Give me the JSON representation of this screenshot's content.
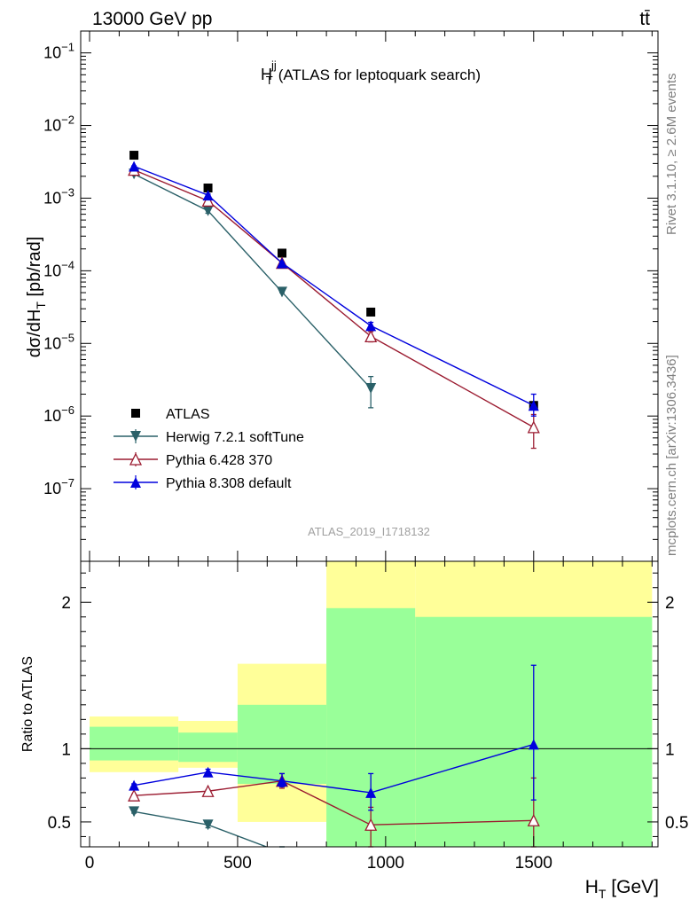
{
  "header": {
    "process": "13000 GeV pp",
    "final_state": "tt̄",
    "side_version": "Rivet 3.1.10, ≥ 2.6M events",
    "side_site": "mcplots.cern.ch [arXiv:1306.3436]"
  },
  "chart_data": [
    {
      "type": "line",
      "panel": "main",
      "title_main": "H",
      "title_sup": "jj",
      "title_sub": "T",
      "title_rest": "(ATLAS for leptoquark search)",
      "ylabel": "dσ/dH",
      "ylabel_sub": "T",
      "ylabel_rest": " [pb/rad]",
      "yscale": "log",
      "ylim": [
        1e-08,
        0.2
      ],
      "xlim": [
        -30,
        1920
      ],
      "watermark": "ATLAS_2019_I1718132",
      "legend_position": "bottom-left",
      "ytick_exponents": [
        "−1",
        "−2",
        "−3",
        "−4",
        "−5",
        "−6",
        "−7"
      ],
      "series": [
        {
          "name": "ATLAS",
          "color": "#000000",
          "marker": "square",
          "x": [
            150,
            400,
            650,
            950,
            1500
          ],
          "y": [
            0.0039,
            0.00138,
            0.000175,
            2.7e-05,
            1.4e-06
          ],
          "yerr_low": [
            0.0039,
            0.00138,
            0.000175,
            2.7e-05,
            1.4e-06
          ],
          "yerr_high": [
            0.0039,
            0.00138,
            0.000175,
            2.7e-05,
            1.4e-06
          ]
        },
        {
          "name": "Herwig 7.2.1 softTune",
          "color": "#2a6068",
          "marker": "triangle-down",
          "x": [
            150,
            400,
            650,
            950
          ],
          "y": [
            0.00215,
            0.00067,
            5.1e-05,
            2.4e-06
          ],
          "yerr_low": [
            0.00212,
            0.00062,
            5e-05,
            1.3e-06
          ],
          "yerr_high": [
            0.00218,
            0.00072,
            5.2e-05,
            3.5e-06
          ]
        },
        {
          "name": "Pythia 6.428 370",
          "color": "#9b1b30",
          "marker": "triangle-open",
          "x": [
            150,
            400,
            650,
            950,
            1500
          ],
          "y": [
            0.00245,
            0.00092,
            0.000128,
            1.25e-05,
            7e-07
          ],
          "yerr_low": [
            0.00242,
            0.00088,
            0.000125,
            1.05e-05,
            3.6e-07
          ],
          "yerr_high": [
            0.00248,
            0.00096,
            0.000131,
            1.45e-05,
            1.05e-06
          ]
        },
        {
          "name": "Pythia 8.308 default",
          "color": "#0000dd",
          "marker": "triangle-up",
          "x": [
            150,
            400,
            650,
            950,
            1500
          ],
          "y": [
            0.00275,
            0.0011,
            0.000128,
            1.75e-05,
            1.4e-06
          ],
          "yerr_low": [
            0.00272,
            0.00106,
            0.000125,
            1.55e-05,
            1e-06
          ],
          "yerr_high": [
            0.00278,
            0.00114,
            0.000131,
            1.95e-05,
            2e-06
          ]
        }
      ]
    },
    {
      "type": "line",
      "panel": "ratio",
      "ylabel": "Ratio to ATLAS",
      "xlabel": "H",
      "xlabel_sub": "T",
      "xlabel_rest": " [GeV]",
      "xlim": [
        -30,
        1920
      ],
      "ylim": [
        0.33,
        2.28
      ],
      "xticks": [
        0,
        500,
        1000,
        1500
      ],
      "yticks": [
        0.5,
        1,
        2
      ],
      "band_colors": {
        "stat": "#99ff99",
        "total": "#ffff99"
      },
      "bands": [
        {
          "x0": 0,
          "x1": 300,
          "stat_lo": 0.92,
          "stat_hi": 1.15,
          "tot_lo": 0.84,
          "tot_hi": 1.22
        },
        {
          "x0": 300,
          "x1": 500,
          "stat_lo": 0.91,
          "stat_hi": 1.11,
          "tot_lo": 0.87,
          "tot_hi": 1.19
        },
        {
          "x0": 500,
          "x1": 800,
          "stat_lo": 0.76,
          "stat_hi": 1.3,
          "tot_lo": 0.5,
          "tot_hi": 1.58
        },
        {
          "x0": 800,
          "x1": 1100,
          "stat_lo": 0.33,
          "stat_hi": 1.96,
          "tot_lo": 0.33,
          "tot_hi": 2.28
        },
        {
          "x0": 1100,
          "x1": 1900,
          "stat_lo": 0.33,
          "stat_hi": 1.9,
          "tot_lo": 0.33,
          "tot_hi": 2.28
        }
      ],
      "series": [
        {
          "name": "Herwig 7.2.1 softTune",
          "color": "#2a6068",
          "marker": "triangle-down",
          "x": [
            150,
            400,
            650
          ],
          "y": [
            0.57,
            0.48,
            0.29
          ],
          "yerr_low": [
            0.56,
            0.46,
            0.28
          ],
          "yerr_high": [
            0.58,
            0.5,
            0.3
          ]
        },
        {
          "name": "Pythia 6.428 370",
          "color": "#9b1b30",
          "marker": "triangle-open",
          "x": [
            150,
            400,
            650,
            950,
            1500
          ],
          "y": [
            0.68,
            0.71,
            0.78,
            0.48,
            0.51
          ],
          "yerr_low": [
            0.67,
            0.7,
            0.73,
            0.33,
            0.33
          ],
          "yerr_high": [
            0.69,
            0.72,
            0.83,
            0.6,
            0.8
          ]
        },
        {
          "name": "Pythia 8.308 default",
          "color": "#0000dd",
          "marker": "triangle-up",
          "x": [
            150,
            400,
            650,
            950,
            1500
          ],
          "y": [
            0.75,
            0.84,
            0.78,
            0.7,
            1.03
          ],
          "yerr_low": [
            0.74,
            0.82,
            0.74,
            0.58,
            0.65
          ],
          "yerr_high": [
            0.76,
            0.86,
            0.83,
            0.83,
            1.57
          ]
        }
      ]
    }
  ]
}
